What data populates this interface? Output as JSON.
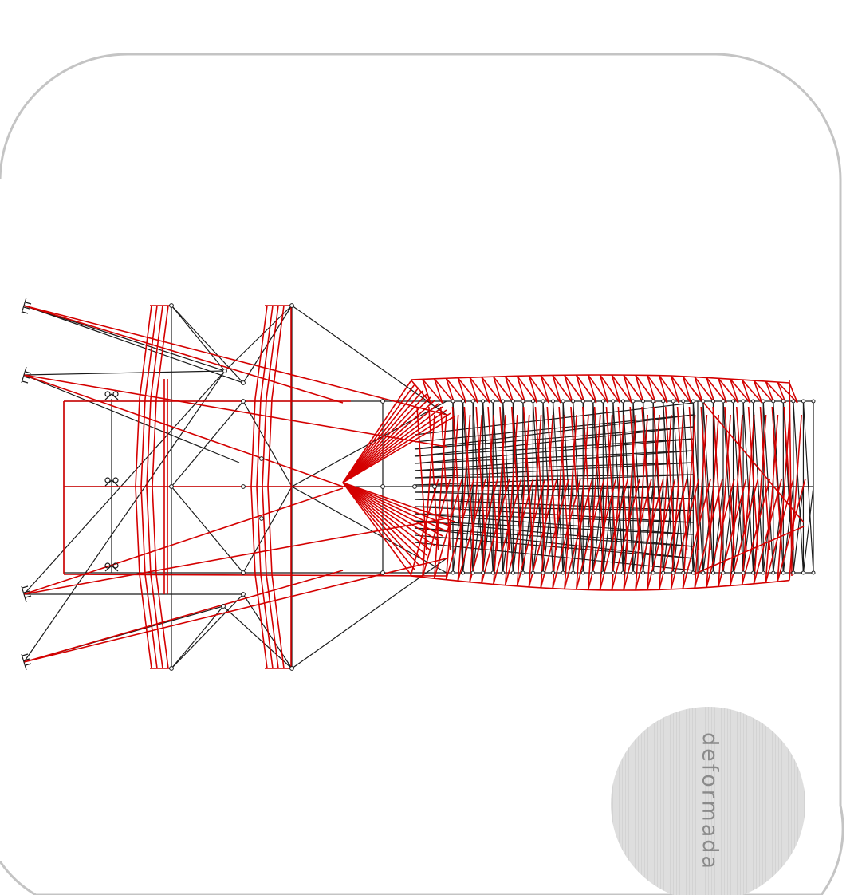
{
  "label": "deformada",
  "colors": {
    "frame": "#c4c4c4",
    "undeformed": "#1a1a1a",
    "deformed": "#d40000",
    "badge": "#dcdcdc",
    "label_text": "#8a8a8a"
  },
  "icons": [
    "fixed-support-icon",
    "pin-support-icon",
    "node-dot-icon"
  ]
}
